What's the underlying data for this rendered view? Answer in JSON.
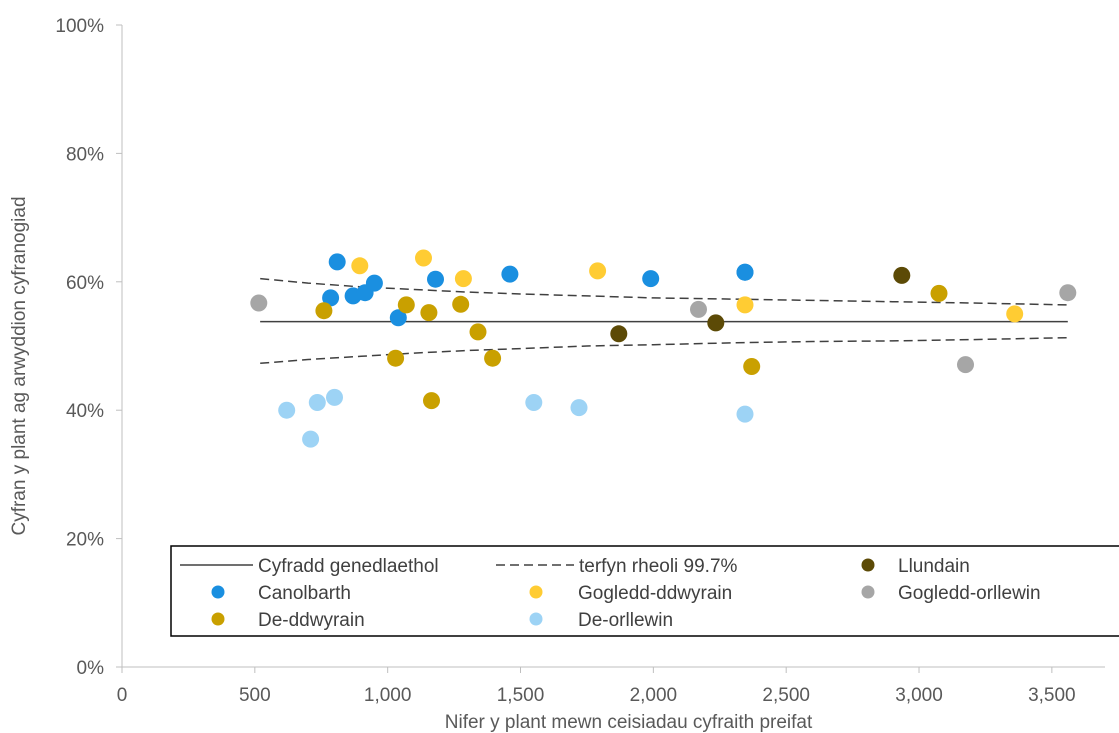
{
  "chart_data": {
    "type": "scatter",
    "title": "",
    "xlabel": "Nifer y plant mewn ceisiadau cyfraith preifat",
    "ylabel": "Cyfran y plant ag arwyddion cyfranogiad",
    "xlim": [
      0,
      3700
    ],
    "ylim": [
      0,
      100
    ],
    "x_ticks": [
      "0",
      "500",
      "1,000",
      "1,500",
      "2,000",
      "2,500",
      "3,000",
      "3,500"
    ],
    "y_ticks": [
      "0%",
      "20%",
      "40%",
      "60%",
      "80%",
      "100%"
    ],
    "grid": false,
    "legend_position": "bottom",
    "national_rate": {
      "name": "Cyfradd genedlaethol",
      "value": 53.8,
      "x_range": [
        520,
        3560
      ],
      "color": "#404040"
    },
    "control_limits": {
      "name": "terfyn rheoli 99.7%",
      "x": [
        520,
        700,
        900,
        1100,
        1300,
        1500,
        1750,
        2000,
        2300,
        2600,
        2900,
        3200,
        3560
      ],
      "upper": [
        60.5,
        59.8,
        59.2,
        58.8,
        58.4,
        58.1,
        57.8,
        57.5,
        57.3,
        57.1,
        56.9,
        56.7,
        56.4
      ],
      "lower": [
        47.3,
        47.9,
        48.4,
        48.9,
        49.3,
        49.6,
        50.0,
        50.2,
        50.5,
        50.7,
        50.8,
        51.0,
        51.3
      ],
      "color": "#404040"
    },
    "series": [
      {
        "name": "Llundain",
        "color": "#5C4A06",
        "points": [
          [
            1870,
            51.9
          ],
          [
            2235,
            53.6
          ],
          [
            2935,
            61.0
          ]
        ]
      },
      {
        "name": "Canolbarth",
        "color": "#1A8FE0",
        "points": [
          [
            785,
            57.5
          ],
          [
            810,
            63.1
          ],
          [
            870,
            57.8
          ],
          [
            915,
            58.3
          ],
          [
            950,
            59.8
          ],
          [
            1040,
            54.4
          ],
          [
            1180,
            60.4
          ],
          [
            1460,
            61.2
          ],
          [
            1990,
            60.5
          ],
          [
            2345,
            61.5
          ],
          [
            2345,
            61.5
          ]
        ]
      },
      {
        "name": "Gogledd-ddwyrain",
        "color": "#FFCC33",
        "points": [
          [
            895,
            62.5
          ],
          [
            1135,
            63.7
          ],
          [
            1285,
            60.5
          ],
          [
            1790,
            61.7
          ],
          [
            2345,
            56.4
          ],
          [
            3360,
            55.0
          ]
        ]
      },
      {
        "name": "Gogledd-orllewin",
        "color": "#A6A6A6",
        "points": [
          [
            515,
            56.7
          ],
          [
            2170,
            55.7
          ],
          [
            3175,
            47.1
          ],
          [
            3560,
            58.3
          ]
        ]
      },
      {
        "name": "De-ddwyrain",
        "color": "#C9A000",
        "points": [
          [
            760,
            55.5
          ],
          [
            1030,
            48.1
          ],
          [
            1070,
            56.4
          ],
          [
            1155,
            55.2
          ],
          [
            1165,
            41.5
          ],
          [
            1275,
            56.5
          ],
          [
            1340,
            52.2
          ],
          [
            1395,
            48.1
          ],
          [
            2370,
            46.8
          ],
          [
            3075,
            58.2
          ]
        ]
      },
      {
        "name": "De-orllewin",
        "color": "#9DD3F5",
        "points": [
          [
            620,
            40.0
          ],
          [
            710,
            35.5
          ],
          [
            735,
            41.2
          ],
          [
            800,
            42.0
          ],
          [
            1550,
            41.2
          ],
          [
            1720,
            40.4
          ],
          [
            2345,
            39.4
          ]
        ]
      }
    ]
  }
}
